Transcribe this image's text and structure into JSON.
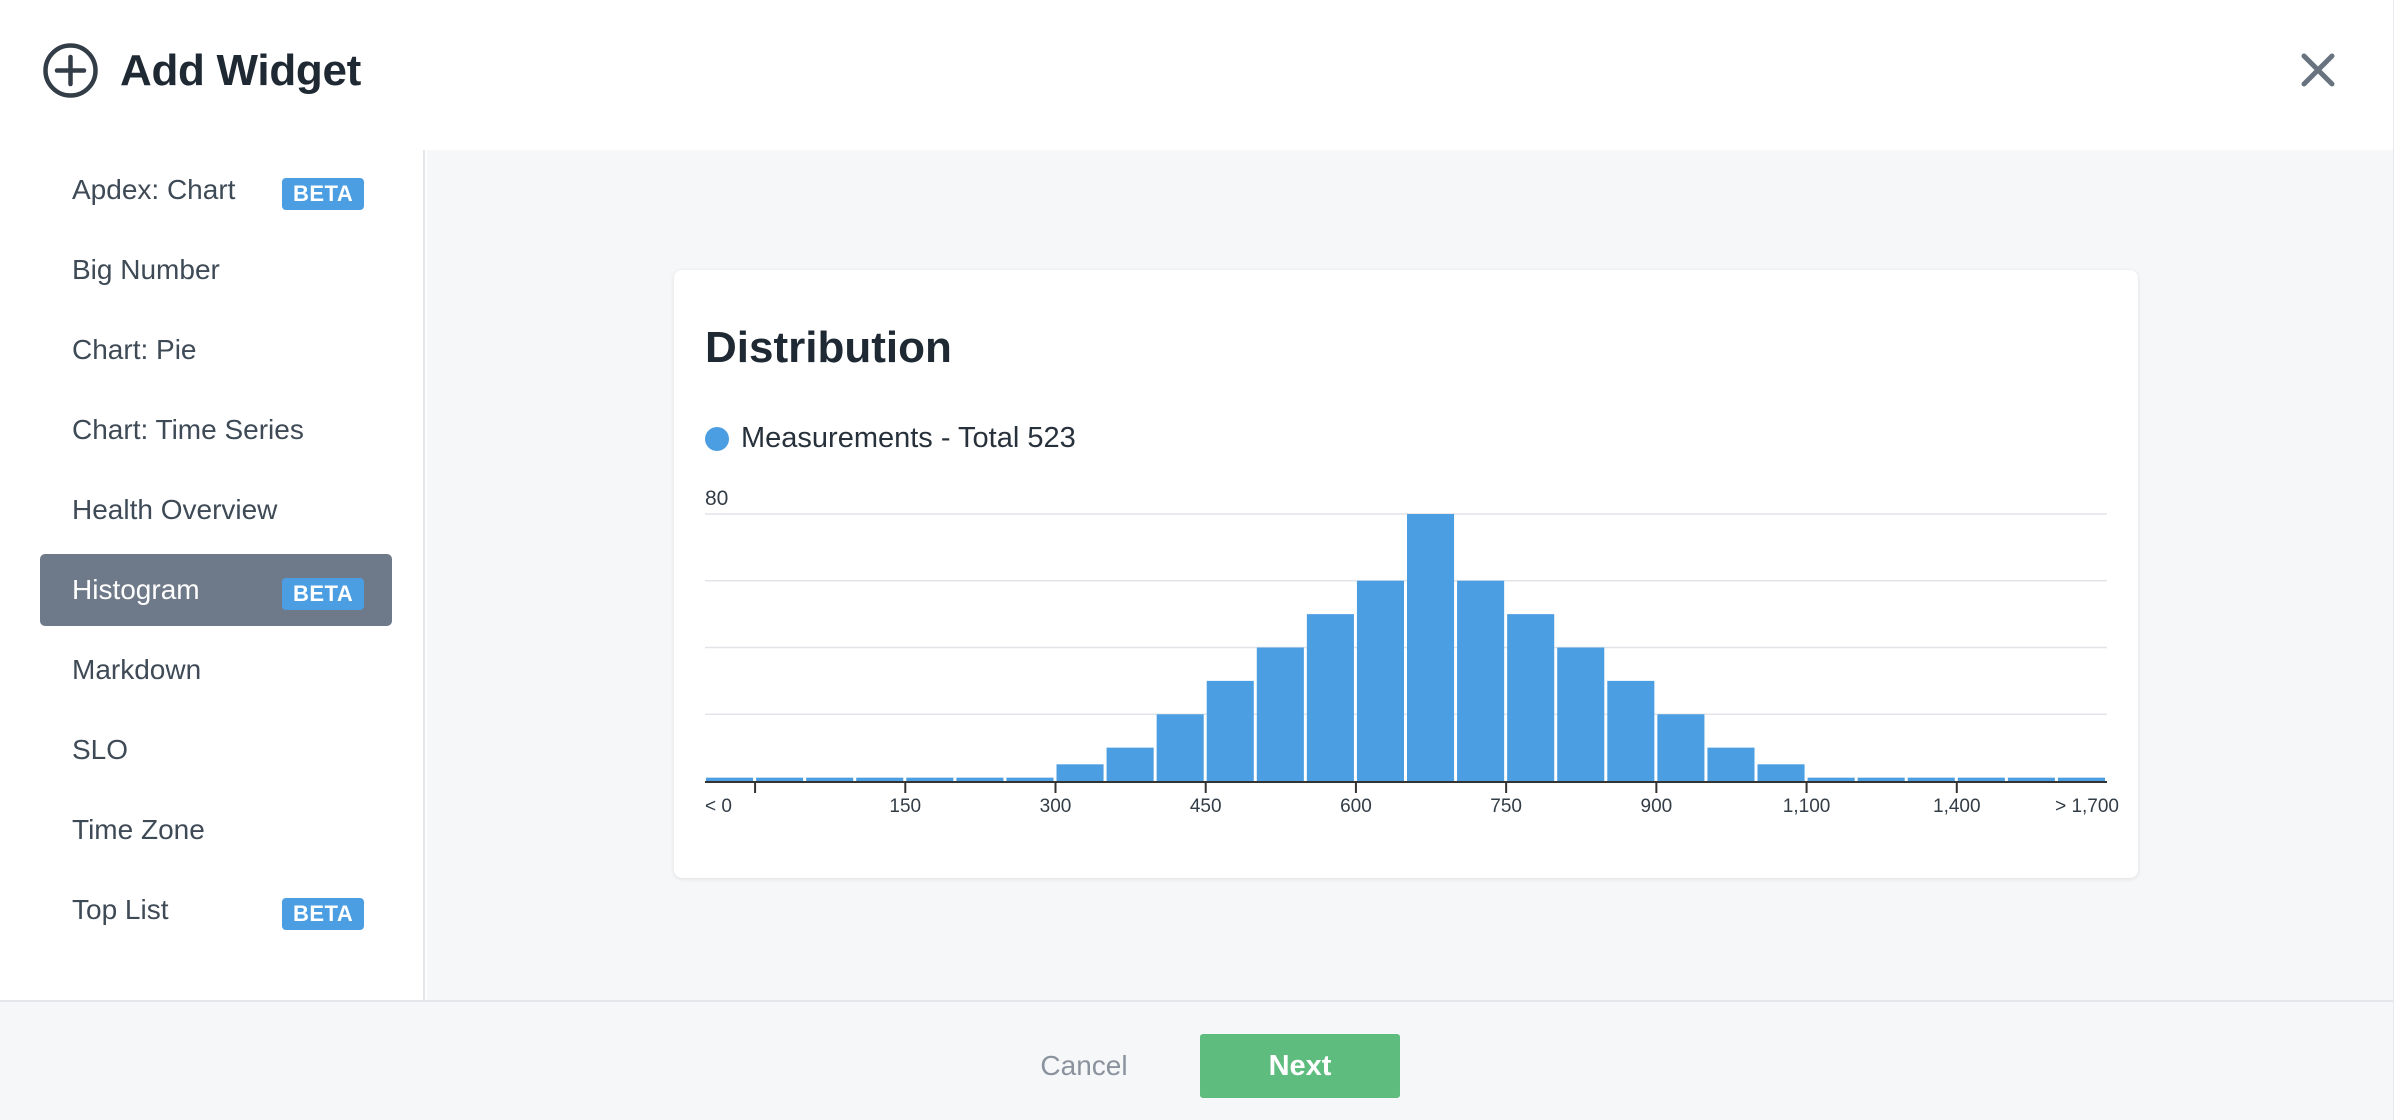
{
  "header": {
    "title": "Add Widget",
    "add_icon": "plus-circle-icon",
    "close_icon": "close-icon"
  },
  "sidebar": {
    "items": [
      {
        "label": "Apdex: Chart",
        "badge": "BETA",
        "active": false
      },
      {
        "label": "Big Number",
        "badge": "",
        "active": false
      },
      {
        "label": "Chart: Pie",
        "badge": "",
        "active": false
      },
      {
        "label": "Chart: Time Series",
        "badge": "",
        "active": false
      },
      {
        "label": "Health Overview",
        "badge": "",
        "active": false
      },
      {
        "label": "Histogram",
        "badge": "BETA",
        "active": true
      },
      {
        "label": "Markdown",
        "badge": "",
        "active": false
      },
      {
        "label": "SLO",
        "badge": "",
        "active": false
      },
      {
        "label": "Time Zone",
        "badge": "",
        "active": false
      },
      {
        "label": "Top List",
        "badge": "BETA",
        "active": false
      }
    ]
  },
  "preview": {
    "title": "Distribution",
    "legend": "Measurements - Total 523"
  },
  "chart_data": {
    "type": "bar",
    "title": "Distribution",
    "series": [
      {
        "name": "Measurements - Total 523",
        "values": [
          1,
          1,
          1,
          1,
          1,
          1,
          1,
          5,
          10,
          20,
          30,
          40,
          50,
          60,
          80,
          60,
          50,
          40,
          30,
          20,
          10,
          5,
          1,
          1,
          1,
          1,
          1,
          1
        ]
      }
    ],
    "y_tick_labels": [
      "80"
    ],
    "ylim": [
      0,
      80
    ],
    "x_tick_labels": [
      "< 0",
      "150",
      "300",
      "450",
      "600",
      "750",
      "900",
      "1,100",
      "1,400",
      "> 1,700"
    ],
    "grid": true,
    "legend_position": "top-left",
    "colors": {
      "bar": "#4b9ee2",
      "grid": "#e1e4e8",
      "axis": "#333333"
    }
  },
  "footer": {
    "cancel_label": "Cancel",
    "next_label": "Next"
  },
  "colors": {
    "accent": "#4b9ee2",
    "next_button": "#5fbc7f",
    "active_item": "#6e7a89"
  }
}
